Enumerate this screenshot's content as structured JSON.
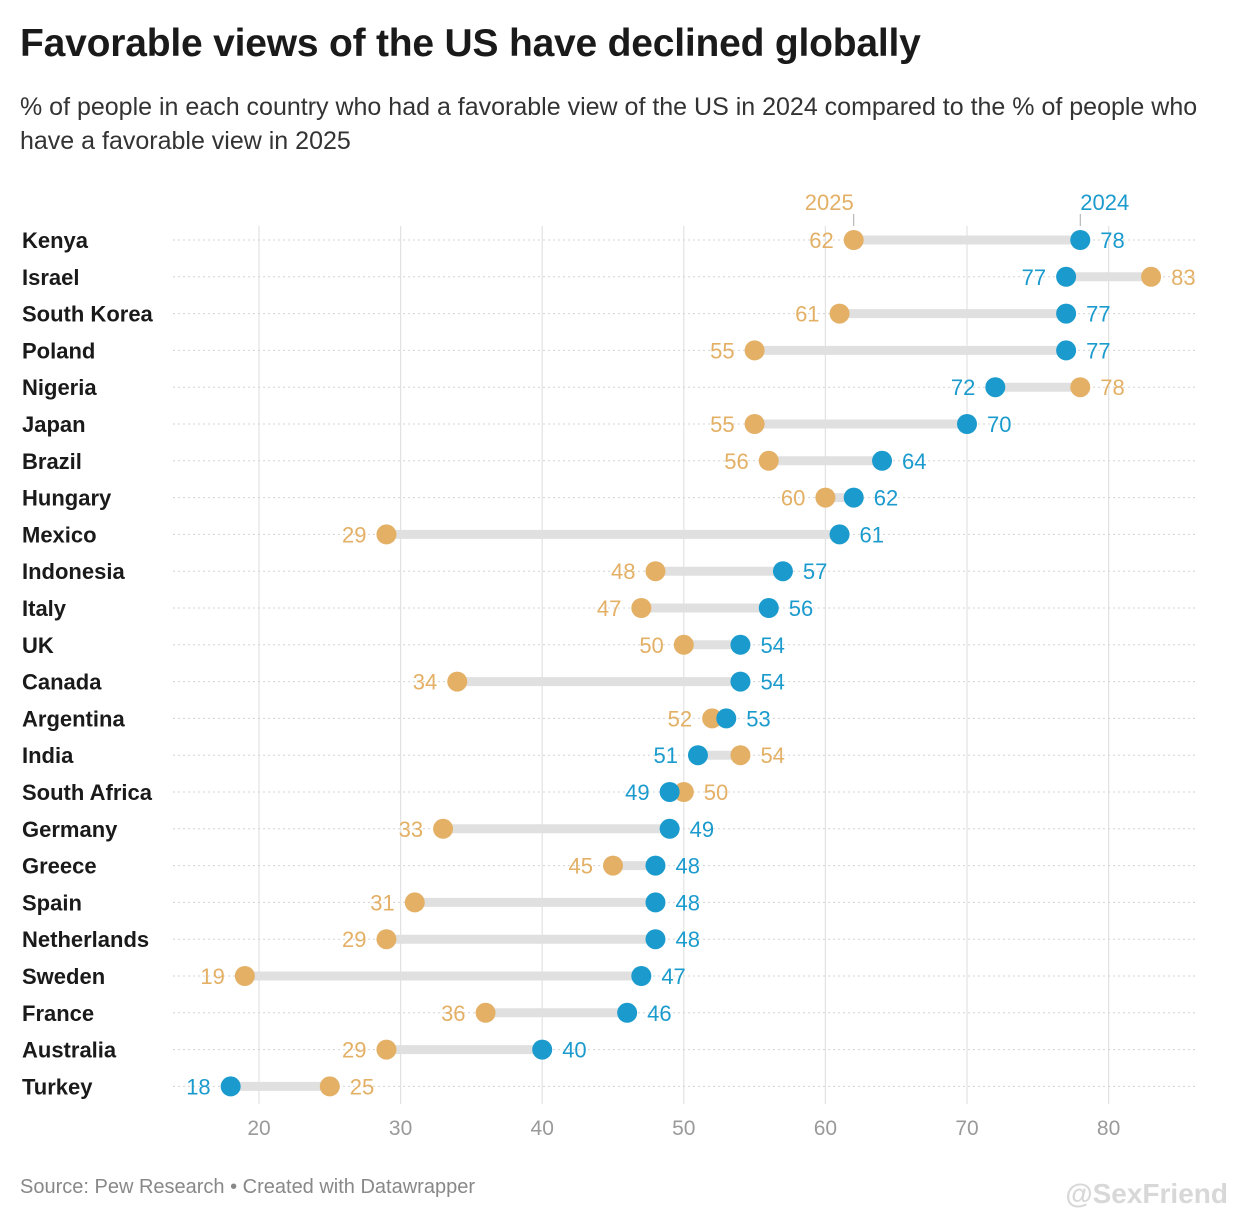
{
  "header": {
    "title": "Favorable views of the US have declined globally",
    "subtitle": "% of people in each country who had a favorable view of the US in 2024 compared to the % of people who have a favorable view in 2025"
  },
  "footer": {
    "source": "Source: Pew Research • Created with Datawrapper",
    "watermark": "@SexFriend"
  },
  "chart_data": {
    "type": "dot-range",
    "x_ticks": [
      20,
      30,
      40,
      50,
      60,
      70,
      80
    ],
    "xlim": [
      14,
      86
    ],
    "grid": true,
    "colors": {
      "2024": "#1b9bcd",
      "2025": "#e3b066",
      "connector": "#e0e0e0"
    },
    "legend": {
      "2024": "2024",
      "2025": "2025"
    },
    "rows": [
      {
        "country": "Kenya",
        "v2024": 78,
        "v2025": 62
      },
      {
        "country": "Israel",
        "v2024": 77,
        "v2025": 83
      },
      {
        "country": "South Korea",
        "v2024": 77,
        "v2025": 61
      },
      {
        "country": "Poland",
        "v2024": 77,
        "v2025": 55
      },
      {
        "country": "Nigeria",
        "v2024": 72,
        "v2025": 78
      },
      {
        "country": "Japan",
        "v2024": 70,
        "v2025": 55
      },
      {
        "country": "Brazil",
        "v2024": 64,
        "v2025": 56
      },
      {
        "country": "Hungary",
        "v2024": 62,
        "v2025": 60
      },
      {
        "country": "Mexico",
        "v2024": 61,
        "v2025": 29
      },
      {
        "country": "Indonesia",
        "v2024": 57,
        "v2025": 48
      },
      {
        "country": "Italy",
        "v2024": 56,
        "v2025": 47
      },
      {
        "country": "UK",
        "v2024": 54,
        "v2025": 50
      },
      {
        "country": "Canada",
        "v2024": 54,
        "v2025": 34
      },
      {
        "country": "Argentina",
        "v2024": 53,
        "v2025": 52
      },
      {
        "country": "India",
        "v2024": 51,
        "v2025": 54
      },
      {
        "country": "South Africa",
        "v2024": 49,
        "v2025": 50
      },
      {
        "country": "Germany",
        "v2024": 49,
        "v2025": 33
      },
      {
        "country": "Greece",
        "v2024": 48,
        "v2025": 45
      },
      {
        "country": "Spain",
        "v2024": 48,
        "v2025": 31
      },
      {
        "country": "Netherlands",
        "v2024": 48,
        "v2025": 29
      },
      {
        "country": "Sweden",
        "v2024": 47,
        "v2025": 19
      },
      {
        "country": "France",
        "v2024": 46,
        "v2025": 36
      },
      {
        "country": "Australia",
        "v2024": 40,
        "v2025": 29
      },
      {
        "country": "Turkey",
        "v2024": 18,
        "v2025": 25
      }
    ]
  }
}
